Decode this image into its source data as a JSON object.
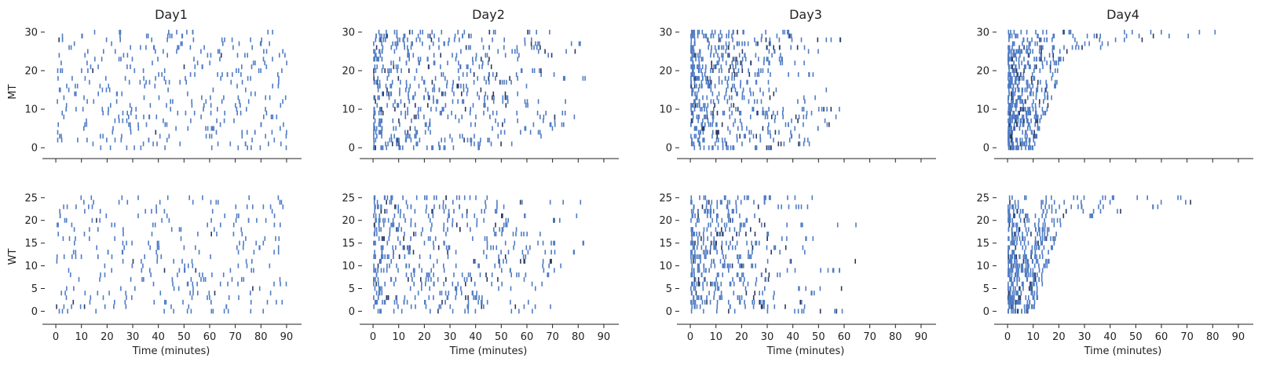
{
  "chart_data": {
    "type": "raster",
    "columns": [
      "Day1",
      "Day2",
      "Day3",
      "Day4"
    ],
    "rows": [
      {
        "label": "MT",
        "yticks": [
          0,
          10,
          20,
          30
        ],
        "ylim": [
          -2,
          31
        ],
        "n_tracks": 31
      },
      {
        "label": "WT",
        "yticks": [
          0,
          5,
          10,
          15,
          20,
          25
        ],
        "ylim": [
          -2,
          26
        ],
        "n_tracks": 26
      }
    ],
    "xlabel": "Time (minutes)",
    "xticks": [
      0,
      10,
      20,
      30,
      40,
      50,
      60,
      70,
      80,
      90
    ],
    "xlim": [
      -4,
      94
    ],
    "event_color": "#4f7cc4",
    "dense_color": "#2b3a5e",
    "activity_profiles": {
      "Day1": {
        "mode": "uniform",
        "end": 90
      },
      "Day2": {
        "mode": "decay",
        "end": 90
      },
      "Day3": {
        "mode": "strong-decay",
        "end": 85
      },
      "Day4": {
        "mode": "ramp",
        "end": 87
      }
    }
  }
}
